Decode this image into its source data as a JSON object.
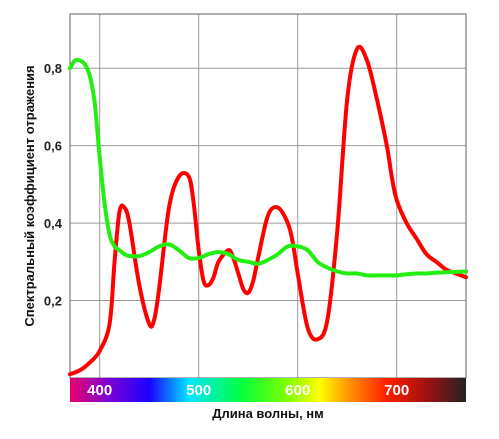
{
  "chart_data": {
    "type": "line",
    "xlabel": "Длина волны, нм",
    "ylabel": "Спектральный коэффициент отражения",
    "xlim": [
      370,
      770
    ],
    "ylim": [
      0,
      0.94
    ],
    "x_ticks": [
      400,
      500,
      600,
      700
    ],
    "x_tick_labels": [
      "400",
      "500",
      "600",
      "700"
    ],
    "y_ticks": [
      0.2,
      0.4,
      0.6,
      0.8
    ],
    "y_tick_labels": [
      "0,2",
      "0,4",
      "0,6",
      "0,8"
    ],
    "grid": true,
    "spectrum_bar": true,
    "series": [
      {
        "color": "#ff0000",
        "x": [
          370,
          380,
          390,
          400,
          410,
          415,
          420,
          425,
          430,
          440,
          450,
          455,
          460,
          470,
          480,
          490,
          495,
          500,
          505,
          510,
          515,
          520,
          530,
          535,
          540,
          545,
          550,
          555,
          560,
          570,
          580,
          590,
          595,
          600,
          610,
          620,
          630,
          640,
          650,
          660,
          670,
          680,
          690,
          695,
          700,
          710,
          720,
          730,
          740,
          750,
          760,
          770
        ],
        "y": [
          0.01,
          0.02,
          0.04,
          0.07,
          0.14,
          0.3,
          0.43,
          0.44,
          0.4,
          0.24,
          0.14,
          0.15,
          0.23,
          0.44,
          0.52,
          0.52,
          0.45,
          0.33,
          0.25,
          0.24,
          0.26,
          0.3,
          0.33,
          0.31,
          0.27,
          0.23,
          0.22,
          0.25,
          0.31,
          0.42,
          0.44,
          0.4,
          0.35,
          0.27,
          0.13,
          0.1,
          0.15,
          0.38,
          0.72,
          0.85,
          0.82,
          0.72,
          0.6,
          0.52,
          0.46,
          0.4,
          0.36,
          0.32,
          0.3,
          0.28,
          0.27,
          0.26
        ]
      },
      {
        "color": "#22ee11",
        "x": [
          370,
          375,
          380,
          385,
          390,
          395,
          400,
          405,
          410,
          415,
          420,
          425,
          430,
          440,
          450,
          460,
          470,
          480,
          490,
          500,
          510,
          520,
          530,
          540,
          550,
          560,
          570,
          580,
          590,
          600,
          610,
          620,
          630,
          640,
          650,
          660,
          670,
          680,
          690,
          700,
          710,
          720,
          730,
          740,
          750,
          760,
          770
        ],
        "y": [
          0.8,
          0.82,
          0.82,
          0.81,
          0.78,
          0.71,
          0.57,
          0.45,
          0.37,
          0.34,
          0.33,
          0.32,
          0.315,
          0.315,
          0.325,
          0.34,
          0.345,
          0.33,
          0.31,
          0.31,
          0.32,
          0.325,
          0.32,
          0.305,
          0.3,
          0.295,
          0.305,
          0.32,
          0.34,
          0.34,
          0.33,
          0.3,
          0.285,
          0.275,
          0.27,
          0.27,
          0.265,
          0.265,
          0.265,
          0.265,
          0.268,
          0.27,
          0.27,
          0.272,
          0.273,
          0.274,
          0.275
        ]
      }
    ]
  }
}
